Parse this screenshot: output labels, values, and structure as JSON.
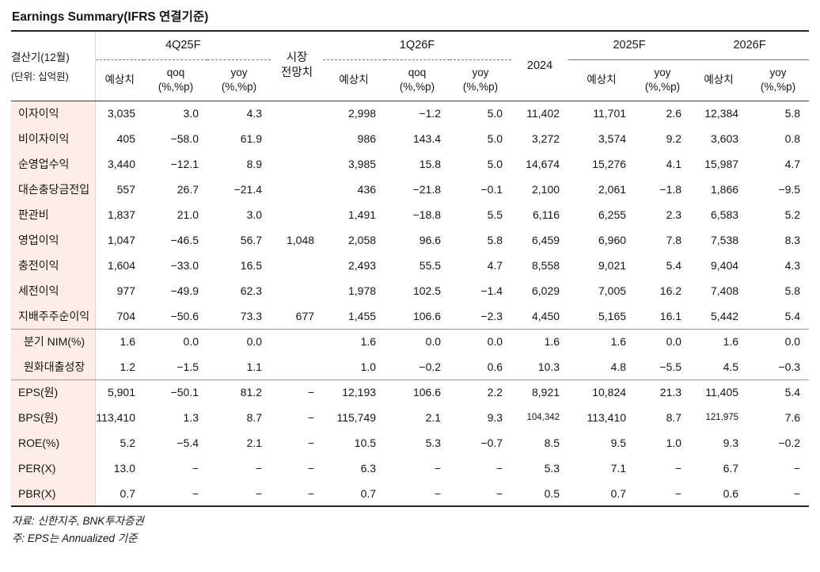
{
  "title": "Earnings Summary(IFRS 연결기준)",
  "table": {
    "corner": {
      "period": "결산기(12월)",
      "unit": "(단위: 십억원)"
    },
    "groups": {
      "q4_25f": "4Q25F",
      "market_line1": "시장",
      "market_line2": "전망치",
      "q1_26f": "1Q26F",
      "y2024": "2024",
      "y2025f": "2025F",
      "y2026f": "2026F"
    },
    "subheaders": {
      "estimate": "예상치",
      "qoq": "qoq",
      "yoy": "yoy",
      "pct_unit": "(%,%p)"
    },
    "rows": [
      {
        "label": "이자이익",
        "values": [
          "3,035",
          "3.0",
          "4.3",
          "",
          "2,998",
          "−1.2",
          "5.0",
          "11,402",
          "11,701",
          "2.6",
          "12,384",
          "5.8"
        ]
      },
      {
        "label": "비이자이익",
        "values": [
          "405",
          "−58.0",
          "61.9",
          "",
          "986",
          "143.4",
          "5.0",
          "3,272",
          "3,574",
          "9.2",
          "3,603",
          "0.8"
        ]
      },
      {
        "label": "순영업수익",
        "values": [
          "3,440",
          "−12.1",
          "8.9",
          "",
          "3,985",
          "15.8",
          "5.0",
          "14,674",
          "15,276",
          "4.1",
          "15,987",
          "4.7"
        ]
      },
      {
        "label": "대손충당금전입",
        "values": [
          "557",
          "26.7",
          "−21.4",
          "",
          "436",
          "−21.8",
          "−0.1",
          "2,100",
          "2,061",
          "−1.8",
          "1,866",
          "−9.5"
        ]
      },
      {
        "label": "판관비",
        "values": [
          "1,837",
          "21.0",
          "3.0",
          "",
          "1,491",
          "−18.8",
          "5.5",
          "6,116",
          "6,255",
          "2.3",
          "6,583",
          "5.2"
        ]
      },
      {
        "label": "영업이익",
        "values": [
          "1,047",
          "−46.5",
          "56.7",
          "1,048",
          "2,058",
          "96.6",
          "5.8",
          "6,459",
          "6,960",
          "7.8",
          "7,538",
          "8.3"
        ]
      },
      {
        "label": "충전이익",
        "values": [
          "1,604",
          "−33.0",
          "16.5",
          "",
          "2,493",
          "55.5",
          "4.7",
          "8,558",
          "9,021",
          "5.4",
          "9,404",
          "4.3"
        ]
      },
      {
        "label": "세전이익",
        "values": [
          "977",
          "−49.9",
          "62.3",
          "",
          "1,978",
          "102.5",
          "−1.4",
          "6,029",
          "7,005",
          "16.2",
          "7,408",
          "5.8"
        ]
      },
      {
        "label": "지배주주순이익",
        "values": [
          "704",
          "−50.6",
          "73.3",
          "677",
          "1,455",
          "106.6",
          "−2.3",
          "4,450",
          "5,165",
          "16.1",
          "5,442",
          "5.4"
        ]
      },
      {
        "label": "분기 NIM(%)",
        "values": [
          "1.6",
          "0.0",
          "0.0",
          "",
          "1.6",
          "0.0",
          "0.0",
          "1.6",
          "1.6",
          "0.0",
          "1.6",
          "0.0"
        ]
      },
      {
        "label": "원화대출성장",
        "values": [
          "1.2",
          "−1.5",
          "1.1",
          "",
          "1.0",
          "−0.2",
          "0.6",
          "10.3",
          "4.8",
          "−5.5",
          "4.5",
          "−0.3"
        ]
      },
      {
        "label": "EPS(원)",
        "values": [
          "5,901",
          "−50.1",
          "81.2",
          "−",
          "12,193",
          "106.6",
          "2.2",
          "8,921",
          "10,824",
          "21.3",
          "11,405",
          "5.4"
        ]
      },
      {
        "label": "BPS(원)",
        "values": [
          "113,410",
          "1.3",
          "8.7",
          "−",
          "115,749",
          "2.1",
          "9.3",
          "104,342",
          "113,410",
          "8.7",
          "121,975",
          "7.6"
        ]
      },
      {
        "label": "ROE(%)",
        "values": [
          "5.2",
          "−5.4",
          "2.1",
          "−",
          "10.5",
          "5.3",
          "−0.7",
          "8.5",
          "9.5",
          "1.0",
          "9.3",
          "−0.2"
        ]
      },
      {
        "label": "PER(X)",
        "values": [
          "13.0",
          "−",
          "−",
          "−",
          "6.3",
          "−",
          "−",
          "5.3",
          "7.1",
          "−",
          "6.7",
          "−"
        ]
      },
      {
        "label": "PBR(X)",
        "values": [
          "0.7",
          "−",
          "−",
          "−",
          "0.7",
          "−",
          "−",
          "0.5",
          "0.7",
          "−",
          "0.6",
          "−"
        ]
      }
    ]
  },
  "footnotes": {
    "source": "자료: 신한지주, BNK투자증권",
    "note": "주: EPS는 Annualized 기준"
  }
}
